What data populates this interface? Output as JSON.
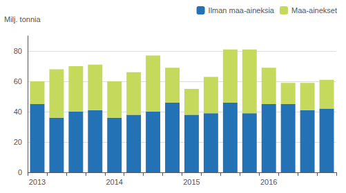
{
  "chart_data": {
    "type": "bar",
    "stacked": true,
    "ylabel": "Milj. tonnia",
    "categories": [
      "2013",
      null,
      null,
      null,
      "2014",
      null,
      null,
      null,
      "2015",
      null,
      null,
      null,
      "2016",
      null,
      null,
      null
    ],
    "series": [
      {
        "name": "Ilman maa-aineksia",
        "color": "#2272b5",
        "values": [
          45,
          36,
          40,
          41,
          36,
          38,
          40,
          46,
          38,
          39,
          46,
          39,
          45,
          45,
          41,
          42
        ]
      },
      {
        "name": "Maa-ainekset",
        "color": "#c5d95c",
        "values": [
          15,
          32,
          30,
          30,
          24,
          28,
          37,
          23,
          17,
          24,
          35,
          42,
          24,
          14,
          18,
          19
        ]
      }
    ],
    "ylim": [
      0,
      90
    ],
    "yticks": [
      0,
      20,
      40,
      60,
      80
    ],
    "grid": true,
    "legend": "upper right"
  }
}
